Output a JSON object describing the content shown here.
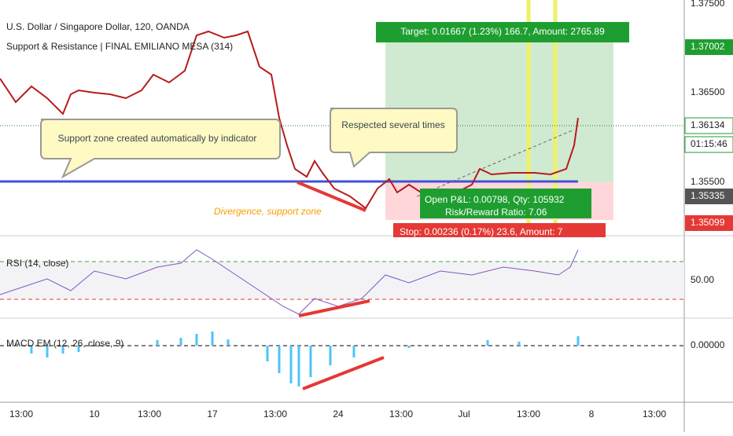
{
  "header": {
    "title": "U.S. Dollar / Singapore Dollar, 120, OANDA",
    "indicator": "Support & Resistance | FINAL EMILIANO MESA (314)"
  },
  "annotations": {
    "target": "Target: 0.01667 (1.23%) 166.7, Amount: 2765.89",
    "callout_support": "Support zone created automatically by indicator",
    "callout_respected": "Respected several times",
    "divergence": "Divergence, support zone",
    "open_pnl": "Open P&L: 0.00798, Qty: 105932",
    "risk_reward": "Risk/Reward Ratio: 7.06",
    "stop": "Stop: 0.00236 (0.17%) 23.6, Amount: 7"
  },
  "price_axis": {
    "labels": [
      "1.37500",
      "1.37002",
      "1.36500",
      "1.36134",
      "01:15:46",
      "1.35500",
      "1.35335",
      "1.35099"
    ]
  },
  "rsi": {
    "label": "RSI (14, close)",
    "axis": "50.00"
  },
  "macd": {
    "label": "MACD EM (12, 26, close, 9)",
    "axis": "0.00000"
  },
  "time_axis": {
    "labels": [
      "13:00",
      "10",
      "13:00",
      "17",
      "13:00",
      "24",
      "13:00",
      "Jul",
      "13:00",
      "8",
      "13:00"
    ]
  }
}
